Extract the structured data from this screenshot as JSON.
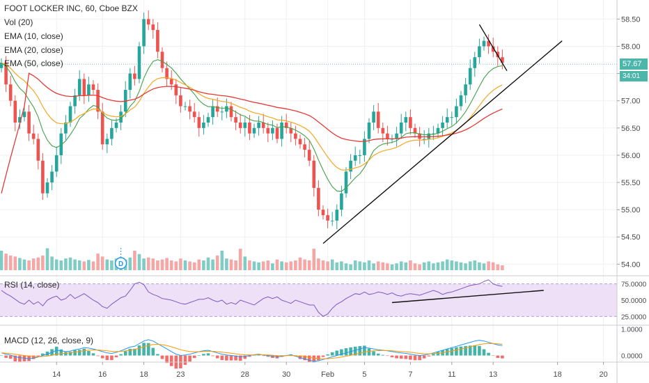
{
  "legends": {
    "title": "FOOT LOCKER INC, 60, Cboe BZX",
    "vol": "Vol (20)",
    "ema10": "EMA (10, close)",
    "ema20": "EMA (20, close)",
    "ema50": "EMA (50, close)",
    "rsi": "RSI (14, close)",
    "macd": "MACD (12, 26, close, 9)"
  },
  "badges": {
    "last_price": "57.67",
    "countdown": "34:01",
    "dividend": "D"
  },
  "colors": {
    "up": "#26a69a",
    "down": "#ef5350",
    "ema10": "#43a047",
    "ema20": "#f5a623",
    "ema50": "#e53935",
    "rsi_line": "#7e57c2",
    "rsi_band": "#ede0f7",
    "price_pill": "#4db6ac",
    "macd_line": "#2196f3",
    "signal_line": "#ff9800"
  },
  "chart_data": {
    "type": "candlestick",
    "x_ticks": [
      {
        "label": "14",
        "index": 12
      },
      {
        "label": "16",
        "index": 22
      },
      {
        "label": "18",
        "index": 31
      },
      {
        "label": "23",
        "index": 39
      },
      {
        "label": "28",
        "index": 53
      },
      {
        "label": "30",
        "index": 62
      },
      {
        "label": "Feb",
        "index": 71
      },
      {
        "label": "5",
        "index": 79
      },
      {
        "label": "7",
        "index": 89
      },
      {
        "label": "11",
        "index": 98
      },
      {
        "label": "13",
        "index": 107
      },
      {
        "label": "18",
        "index": 121
      },
      {
        "label": "20",
        "index": 131
      }
    ],
    "price_axis": {
      "ylim": [
        53.8,
        58.85
      ],
      "ticks": [
        "58.50",
        "58.00",
        "57.50",
        "57.00",
        "56.50",
        "56.00",
        "55.50",
        "55.00",
        "54.50",
        "54.00"
      ]
    },
    "rsi_axis": {
      "ylim": [
        20,
        80
      ],
      "ticks": [
        "75.0000",
        "50.0000",
        "25.0000"
      ],
      "band": [
        30,
        70
      ]
    },
    "macd_axis": {
      "ylim": [
        -0.25,
        1.15
      ],
      "ticks": [
        "1.0000",
        "0.0000"
      ]
    },
    "close": [
      57.7,
      57.3,
      57.0,
      56.6,
      56.7,
      56.8,
      56.4,
      56.3,
      55.9,
      55.3,
      55.5,
      55.7,
      56.0,
      56.4,
      56.6,
      56.9,
      57.1,
      57.4,
      57.1,
      57.3,
      57.2,
      56.8,
      56.2,
      56.3,
      56.5,
      56.6,
      56.8,
      57.2,
      57.5,
      57.4,
      58.0,
      58.5,
      58.4,
      58.3,
      57.9,
      57.6,
      57.4,
      57.3,
      57.1,
      56.9,
      56.9,
      56.8,
      56.7,
      56.5,
      56.6,
      56.7,
      56.9,
      56.8,
      56.8,
      56.9,
      56.7,
      56.6,
      56.5,
      56.6,
      56.4,
      56.5,
      56.6,
      56.5,
      56.4,
      56.5,
      56.3,
      56.6,
      56.5,
      56.4,
      56.3,
      56.2,
      56.1,
      55.9,
      55.4,
      55.0,
      54.9,
      54.8,
      54.8,
      55.0,
      55.3,
      55.7,
      55.9,
      56.0,
      56.0,
      56.3,
      56.6,
      56.8,
      56.5,
      56.4,
      56.3,
      56.3,
      56.4,
      56.6,
      56.7,
      56.5,
      56.4,
      56.3,
      56.3,
      56.4,
      56.4,
      56.5,
      56.6,
      56.7,
      56.7,
      56.9,
      57.1,
      57.3,
      57.6,
      57.8,
      58.0,
      58.1,
      58.0,
      57.9,
      57.8,
      57.7
    ],
    "volume": [
      40,
      34,
      30,
      28,
      25,
      22,
      20,
      24,
      26,
      30,
      45,
      28,
      22,
      20,
      24,
      26,
      22,
      20,
      18,
      21,
      18,
      34,
      28,
      22,
      20,
      24,
      18,
      22,
      26,
      40,
      33,
      24,
      26,
      24,
      20,
      22,
      25,
      20,
      18,
      24,
      20,
      18,
      16,
      22,
      20,
      26,
      22,
      30,
      40,
      24,
      22,
      20,
      44,
      28,
      20,
      18,
      16,
      18,
      20,
      14,
      22,
      18,
      16,
      18,
      20,
      26,
      22,
      20,
      44,
      24,
      20,
      18,
      22,
      16,
      18,
      14,
      12,
      20,
      18,
      16,
      20,
      14,
      18,
      16,
      14,
      12,
      14,
      18,
      16,
      20,
      14,
      12,
      16,
      18,
      14,
      16,
      18,
      22,
      20,
      18,
      16,
      14,
      18,
      20,
      16,
      14,
      18,
      16,
      12,
      10
    ],
    "rsi": [
      62,
      58,
      55,
      51,
      47,
      45,
      50,
      45,
      48,
      43,
      50,
      53,
      55,
      50,
      52,
      57,
      52,
      55,
      58,
      54,
      50,
      47,
      42,
      40,
      45,
      49,
      53,
      55,
      62,
      70,
      72,
      69,
      60,
      57,
      55,
      52,
      51,
      50,
      48,
      46,
      45,
      47,
      49,
      51,
      51,
      53,
      50,
      48,
      50,
      45,
      47,
      45,
      50,
      48,
      46,
      44,
      48,
      52,
      54,
      52,
      54,
      50,
      48,
      46,
      50,
      48,
      46,
      44,
      44,
      35,
      30,
      33,
      40,
      45,
      48,
      52,
      55,
      58,
      57,
      60,
      57,
      58,
      60,
      59,
      57,
      59,
      56,
      55,
      57,
      58,
      57,
      56,
      58,
      60,
      62,
      60,
      57,
      59,
      60,
      62,
      64,
      66,
      68,
      69,
      70,
      73,
      75,
      70,
      68,
      67
    ],
    "macd": [
      0.1,
      0.05,
      0.02,
      -0.05,
      -0.08,
      -0.1,
      -0.12,
      -0.1,
      -0.06,
      0.0,
      0.05,
      0.12,
      0.2,
      0.18,
      0.15,
      0.17,
      0.22,
      0.25,
      0.3,
      0.28,
      0.25,
      0.2,
      0.15,
      0.1,
      0.08,
      0.12,
      0.18,
      0.25,
      0.32,
      0.35,
      0.45,
      0.55,
      0.6,
      0.55,
      0.45,
      0.35,
      0.25,
      0.15,
      0.05,
      0.0,
      0.02,
      0.05,
      0.1,
      0.15,
      0.18,
      0.2,
      0.15,
      0.1,
      0.05,
      0.02,
      0.0,
      -0.02,
      -0.05,
      -0.03,
      0.0,
      0.03,
      0.05,
      0.02,
      0.0,
      -0.03,
      -0.05,
      -0.03,
      0.0,
      0.02,
      -0.02,
      -0.08,
      -0.12,
      -0.18,
      -0.22,
      -0.2,
      -0.15,
      -0.1,
      -0.05,
      0.0,
      0.05,
      0.1,
      0.15,
      0.2,
      0.25,
      0.3,
      0.28,
      0.25,
      0.22,
      0.2,
      0.18,
      0.15,
      0.12,
      0.1,
      0.08,
      0.05,
      0.02,
      0.0,
      0.02,
      0.05,
      0.1,
      0.15,
      0.2,
      0.25,
      0.3,
      0.35,
      0.4,
      0.45,
      0.5,
      0.55,
      0.58,
      0.55,
      0.5,
      0.45,
      0.4,
      0.38
    ],
    "rsi_trendline": [
      [
        85,
        47
      ],
      [
        118,
        62
      ]
    ],
    "rising_trendline": [
      [
        70,
        54.38
      ],
      [
        122,
        58.1
      ]
    ],
    "resistance_trendline": [
      [
        104,
        58.4
      ],
      [
        110,
        57.55
      ]
    ]
  }
}
